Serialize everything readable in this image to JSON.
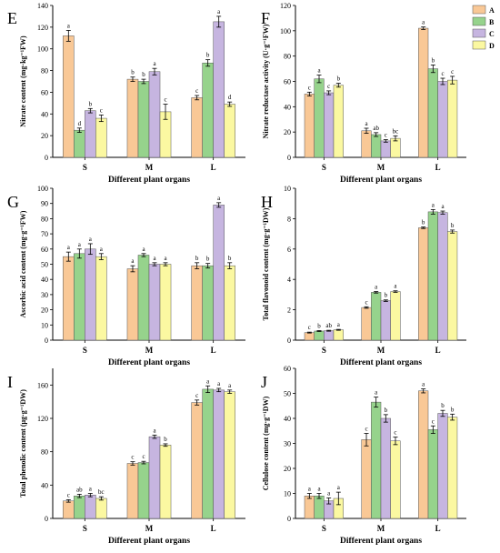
{
  "colors": {
    "A": "#F9C896",
    "B": "#96D38C",
    "C": "#C6B5E0",
    "D": "#FBF8A1"
  },
  "legend": [
    "A",
    "B",
    "C",
    "D"
  ],
  "chart_data": [
    {
      "panel": "E",
      "type": "bar",
      "categories": [
        "S",
        "M",
        "L"
      ],
      "xlabel": "Different plant organs",
      "ylabel": "Nitrate content (mg·kg⁻¹FW)",
      "ylim": [
        0,
        140
      ],
      "yticks": [
        0,
        20,
        40,
        60,
        80,
        100,
        120,
        140
      ],
      "series": [
        {
          "name": "A",
          "values": [
            112,
            72,
            55
          ],
          "errors": [
            5,
            2,
            2
          ],
          "letters": [
            "a",
            "b",
            "c"
          ]
        },
        {
          "name": "B",
          "values": [
            25,
            70,
            87
          ],
          "errors": [
            2,
            2,
            3
          ],
          "letters": [
            "d",
            "b",
            "b"
          ]
        },
        {
          "name": "C",
          "values": [
            43,
            79,
            125
          ],
          "errors": [
            2,
            3,
            5
          ],
          "letters": [
            "b",
            "a",
            "a"
          ]
        },
        {
          "name": "D",
          "values": [
            36,
            42,
            49
          ],
          "errors": [
            3,
            7,
            2
          ],
          "letters": [
            "c",
            "c",
            "d"
          ]
        }
      ]
    },
    {
      "panel": "F",
      "type": "bar",
      "categories": [
        "S",
        "M",
        "L"
      ],
      "xlabel": "Different plant organs",
      "ylabel": "Nitrate reductase activity (U·g⁻¹FW)",
      "ylim": [
        0,
        120
      ],
      "yticks": [
        0,
        20,
        40,
        60,
        80,
        100,
        120
      ],
      "series": [
        {
          "name": "A",
          "values": [
            50,
            21,
            102
          ],
          "errors": [
            1.5,
            2,
            1
          ],
          "letters": [
            "c",
            "a",
            "a"
          ]
        },
        {
          "name": "B",
          "values": [
            62,
            18,
            70
          ],
          "errors": [
            3,
            1.5,
            3
          ],
          "letters": [
            "a",
            "ab",
            "b"
          ]
        },
        {
          "name": "C",
          "values": [
            51,
            13,
            60
          ],
          "errors": [
            1.5,
            1,
            2.5
          ],
          "letters": [
            "c",
            "c",
            "c"
          ]
        },
        {
          "name": "D",
          "values": [
            57,
            15,
            61
          ],
          "errors": [
            1.5,
            2,
            3
          ],
          "letters": [
            "b",
            "bc",
            "c"
          ]
        }
      ]
    },
    {
      "panel": "G",
      "type": "bar",
      "categories": [
        "S",
        "M",
        "L"
      ],
      "xlabel": "Different plant organs",
      "ylabel": "Ascorbic acid content (mg·g⁻¹FW)",
      "ylim": [
        0,
        100
      ],
      "yticks": [
        0,
        10,
        20,
        30,
        40,
        50,
        60,
        70,
        80,
        90,
        100
      ],
      "series": [
        {
          "name": "A",
          "values": [
            55,
            47,
            49
          ],
          "errors": [
            3,
            2,
            2
          ],
          "letters": [
            "a",
            "a",
            "b"
          ]
        },
        {
          "name": "B",
          "values": [
            57,
            56,
            49
          ],
          "errors": [
            3,
            1,
            1.5
          ],
          "letters": [
            "a",
            "a",
            "b"
          ]
        },
        {
          "name": "C",
          "values": [
            60,
            50,
            89
          ],
          "errors": [
            3.5,
            1,
            1.5
          ],
          "letters": [
            "a",
            "a",
            "a"
          ]
        },
        {
          "name": "D",
          "values": [
            55,
            50,
            49
          ],
          "errors": [
            2,
            1,
            2
          ],
          "letters": [
            "a",
            "a",
            "b"
          ]
        }
      ]
    },
    {
      "panel": "H",
      "type": "bar",
      "categories": [
        "S",
        "M",
        "L"
      ],
      "xlabel": "Different plant organs",
      "ylabel": "Total flavonoid content (mg·g⁻¹DW)",
      "ylim": [
        0,
        10
      ],
      "yticks": [
        0,
        2,
        4,
        6,
        8,
        10
      ],
      "series": [
        {
          "name": "A",
          "values": [
            0.5,
            2.15,
            7.4
          ],
          "errors": [
            0.03,
            0.05,
            0.05
          ],
          "letters": [
            "c",
            "c",
            "b"
          ]
        },
        {
          "name": "B",
          "values": [
            0.6,
            3.15,
            8.45
          ],
          "errors": [
            0.03,
            0.05,
            0.15
          ],
          "letters": [
            "b",
            "a",
            "a"
          ]
        },
        {
          "name": "C",
          "values": [
            0.62,
            2.6,
            8.4
          ],
          "errors": [
            0.03,
            0.05,
            0.1
          ],
          "letters": [
            "ab",
            "b",
            "a"
          ]
        },
        {
          "name": "D",
          "values": [
            0.68,
            3.2,
            7.15
          ],
          "errors": [
            0.03,
            0.05,
            0.1
          ],
          "letters": [
            "a",
            "a",
            "b"
          ]
        }
      ]
    },
    {
      "panel": "I",
      "type": "bar",
      "categories": [
        "S",
        "M",
        "L"
      ],
      "xlabel": "Different plant organs",
      "ylabel": "Total phenolic content (µg·g⁻¹DW)",
      "ylim": [
        0,
        180
      ],
      "yticks": [
        0,
        40,
        80,
        120,
        160
      ],
      "series": [
        {
          "name": "A",
          "values": [
            21,
            66,
            139
          ],
          "errors": [
            1.5,
            2,
            3
          ],
          "letters": [
            "c",
            "c",
            "c"
          ]
        },
        {
          "name": "B",
          "values": [
            27,
            67,
            155
          ],
          "errors": [
            2,
            1.5,
            4
          ],
          "letters": [
            "ab",
            "c",
            "a"
          ]
        },
        {
          "name": "C",
          "values": [
            28,
            98,
            154
          ],
          "errors": [
            2,
            2,
            2
          ],
          "letters": [
            "a",
            "a",
            "a"
          ]
        },
        {
          "name": "D",
          "values": [
            24,
            88,
            152
          ],
          "errors": [
            2,
            1.5,
            2
          ],
          "letters": [
            "bc",
            "b",
            "a"
          ]
        }
      ]
    },
    {
      "panel": "J",
      "type": "bar",
      "categories": [
        "S",
        "M",
        "L"
      ],
      "xlabel": "Different plant organs",
      "ylabel": "Cellulose content (mg·g⁻¹DW)",
      "ylim": [
        0,
        60
      ],
      "yticks": [
        0,
        10,
        20,
        30,
        40,
        50,
        60
      ],
      "series": [
        {
          "name": "A",
          "values": [
            9,
            31.5,
            51
          ],
          "errors": [
            1,
            2.5,
            0.8
          ],
          "letters": [
            "a",
            "c",
            "a"
          ]
        },
        {
          "name": "B",
          "values": [
            9,
            46.5,
            35.5
          ],
          "errors": [
            1,
            2,
            1.5
          ],
          "letters": [
            "a",
            "a",
            "c"
          ]
        },
        {
          "name": "C",
          "values": [
            7,
            40,
            42
          ],
          "errors": [
            1.2,
            1.5,
            1.2
          ],
          "letters": [
            "a",
            "b",
            "b"
          ]
        },
        {
          "name": "D",
          "values": [
            8,
            31,
            40.5
          ],
          "errors": [
            2.5,
            1.5,
            1.2
          ],
          "letters": [
            "a",
            "c",
            "b"
          ]
        }
      ]
    }
  ]
}
